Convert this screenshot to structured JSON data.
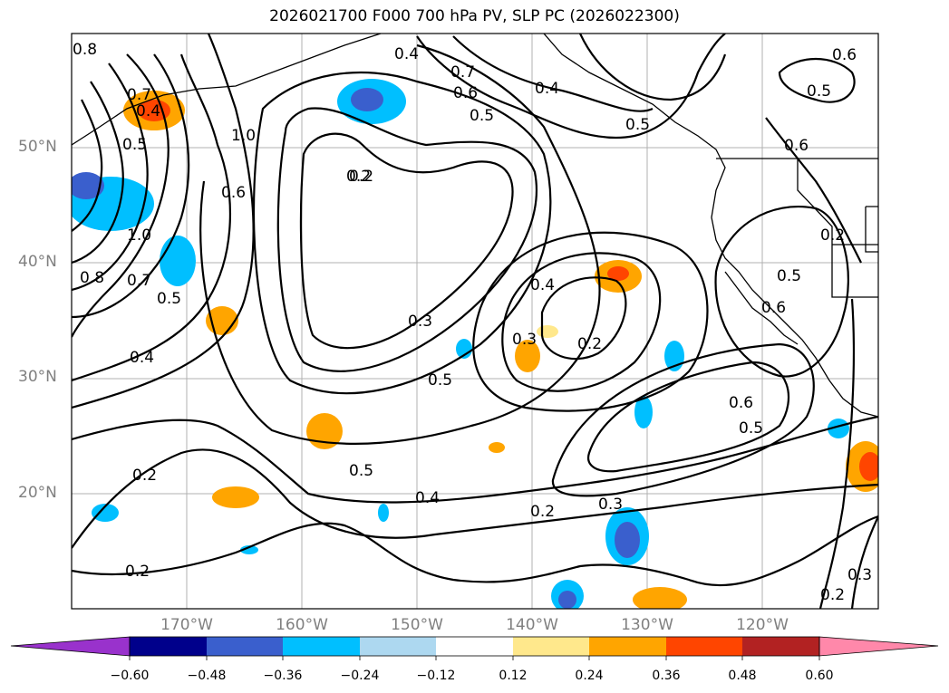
{
  "title": "2026021700 F000 700 hPa PV, SLP PC (2026022300)",
  "map": {
    "lat_labels": [
      "50°N",
      "40°N",
      "30°N",
      "20°N"
    ],
    "lon_labels": [
      "170°W",
      "160°W",
      "150°W",
      "140°W",
      "130°W",
      "120°W"
    ],
    "contour_labels": [
      "0.8",
      "0.7",
      "0.5",
      "0.4",
      "0.2",
      "1.0",
      "0.6",
      "0.2",
      "0.3",
      "0.5",
      "0.4",
      "0.2",
      "0.3",
      "0.4",
      "0.2",
      "0.5",
      "0.6",
      "0.5",
      "0.6",
      "0.5",
      "0.6",
      "0.5",
      "0.2",
      "0.2",
      "0.3",
      "0.7",
      "0.6",
      "0.5",
      "0.4",
      "0.6",
      "0.5",
      "1.0",
      "0.8",
      "0.7",
      "0.5",
      "0.4",
      "0.2",
      "0.2",
      "0.4",
      "0.3"
    ]
  },
  "colorbar": {
    "ticks": [
      "−0.60",
      "−0.48",
      "−0.36",
      "−0.24",
      "−0.12",
      "0.12",
      "0.24",
      "0.36",
      "0.48",
      "0.60"
    ],
    "colors": [
      "#9932cc",
      "#00008b",
      "#3a5fcd",
      "#00bfff",
      "#add8f0",
      "#ffffff",
      "#ffe88c",
      "#ffa500",
      "#ff4500",
      "#b22222",
      "#ff88aa"
    ]
  }
}
